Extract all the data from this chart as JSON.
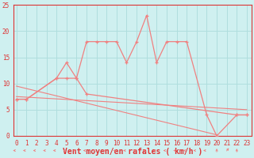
{
  "rafales_pts": [
    [
      0,
      7
    ],
    [
      1,
      7
    ],
    [
      4,
      11
    ],
    [
      5,
      14
    ],
    [
      6,
      11
    ],
    [
      7,
      18
    ],
    [
      8,
      18
    ],
    [
      9,
      18
    ],
    [
      10,
      18
    ],
    [
      11,
      14
    ],
    [
      12,
      18
    ],
    [
      13,
      23
    ],
    [
      14,
      14
    ],
    [
      15,
      18
    ],
    [
      16,
      18
    ],
    [
      17,
      18
    ],
    [
      19,
      4
    ],
    [
      20,
      0
    ],
    [
      22,
      4
    ],
    [
      23,
      4
    ]
  ],
  "moyen_pts": [
    [
      0,
      7
    ],
    [
      1,
      7
    ],
    [
      4,
      11
    ],
    [
      5,
      11
    ],
    [
      6,
      11
    ],
    [
      7,
      8
    ],
    [
      22,
      4
    ],
    [
      23,
      4
    ]
  ],
  "trend1_x": [
    0,
    23
  ],
  "trend1_y": [
    7.5,
    5.0
  ],
  "trend2_x": [
    0,
    20
  ],
  "trend2_y": [
    9.5,
    0.2
  ],
  "arrows_x": [
    0,
    1,
    2,
    3,
    4,
    5,
    6,
    7,
    8,
    9,
    10,
    11,
    12,
    13,
    14,
    15,
    16,
    17,
    18,
    19
  ],
  "arrow21_up": true,
  "xlabel": "Vent moyen/en rafales ( km/h )",
  "bg_color": "#cff0f0",
  "line_color": "#f08080",
  "grid_color": "#b0dede",
  "axis_color": "#dd3333",
  "ylim": [
    0,
    25
  ],
  "xlim": [
    0,
    23
  ],
  "yticks": [
    0,
    5,
    10,
    15,
    20,
    25
  ],
  "title_fontsize": 7,
  "tick_fontsize": 5.5
}
